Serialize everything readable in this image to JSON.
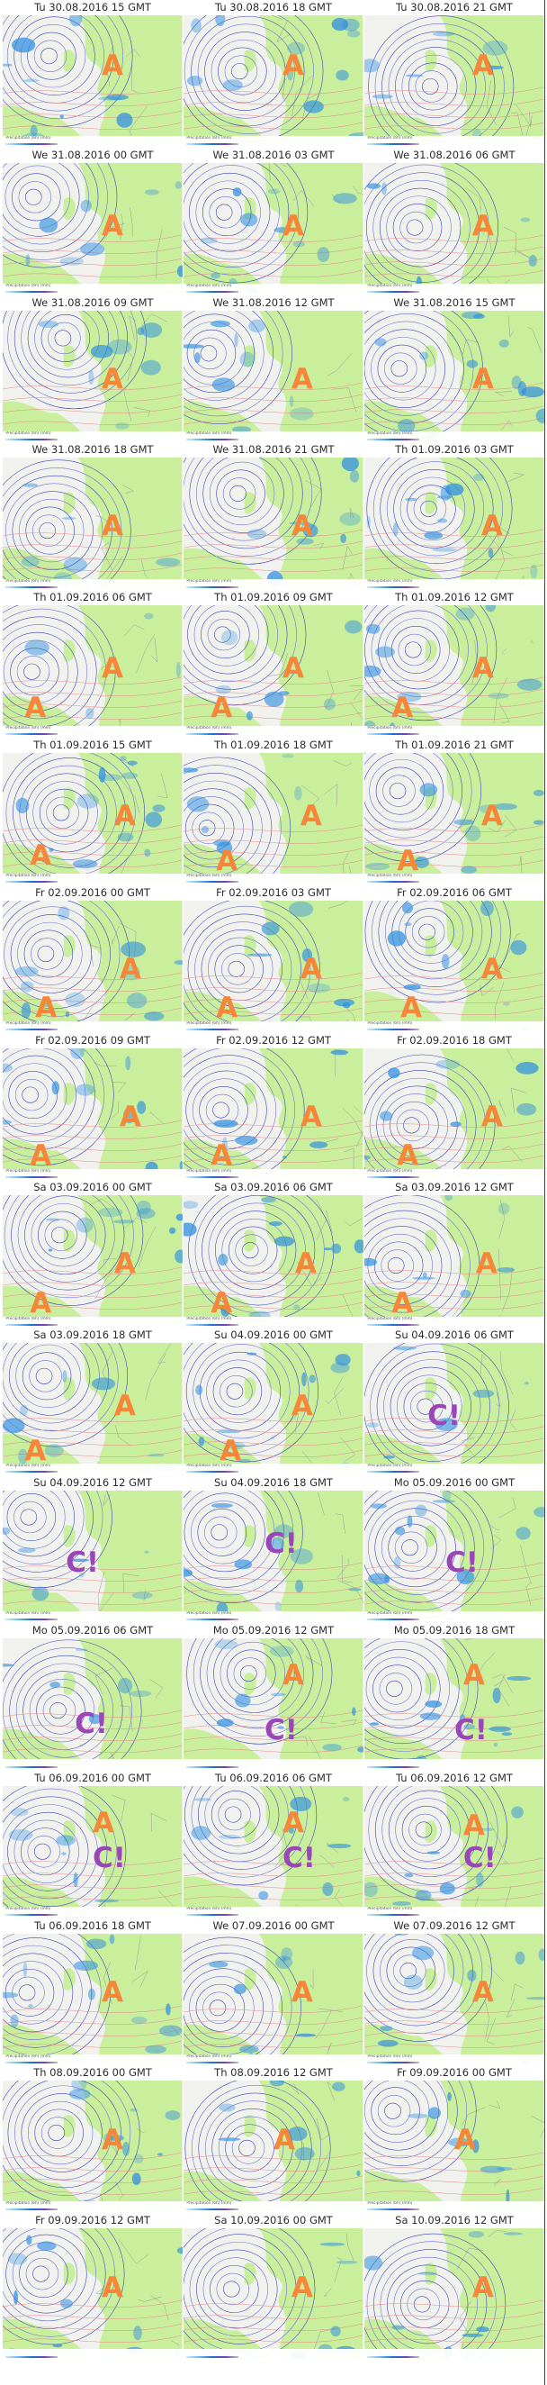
{
  "colors": {
    "high_marker": "#f6873a",
    "low_marker": "#9b46b8",
    "land": "#c9ef9c",
    "sea": "#f1f2ee",
    "precipitation": "#2f8fe0",
    "isobar": "#3b47b8"
  },
  "panels": [
    {
      "title": "Tu 30.08.2016   15 GMT",
      "footer": "Precipitation (6h) (mm)",
      "markers": [
        {
          "label": "A",
          "type": "high"
        }
      ]
    },
    {
      "title": "Tu 30.08.2016   18 GMT",
      "footer": "Precipitation (6h) (mm)",
      "markers": [
        {
          "label": "A",
          "type": "high"
        }
      ]
    },
    {
      "title": "Tu 30.08.2016   21 GMT",
      "footer": "Precipitation (6h) (mm)",
      "markers": [
        {
          "label": "A",
          "type": "high"
        }
      ]
    },
    {
      "title": "We 31.08.2016   00 GMT",
      "footer": "Precipitation (6h) (mm)",
      "markers": [
        {
          "label": "A",
          "type": "high"
        }
      ]
    },
    {
      "title": "We 31.08.2016   03 GMT",
      "footer": "Precipitation (6h) (mm)",
      "markers": [
        {
          "label": "A",
          "type": "high"
        }
      ]
    },
    {
      "title": "We 31.08.2016   06 GMT",
      "footer": "Precipitation (6h) (mm)",
      "markers": [
        {
          "label": "A",
          "type": "high"
        }
      ]
    },
    {
      "title": "We 31.08.2016   09 GMT",
      "footer": "Precipitation (6h) (mm)",
      "markers": [
        {
          "label": "A",
          "type": "high"
        }
      ]
    },
    {
      "title": "We 31.08.2016   12 GMT",
      "footer": "Precipitation (6h) (mm)",
      "markers": [
        {
          "label": "A",
          "type": "high"
        }
      ]
    },
    {
      "title": "We 31.08.2016   15 GMT",
      "footer": "Precipitation (6h) (mm)",
      "markers": [
        {
          "label": "A",
          "type": "high"
        }
      ]
    },
    {
      "title": "We 31.08.2016   18 GMT",
      "footer": "Precipitation (6h) (mm)",
      "markers": [
        {
          "label": "A",
          "type": "high"
        }
      ]
    },
    {
      "title": "We 31.08.2016   21 GMT",
      "footer": "Precipitation (6h) (mm)",
      "markers": [
        {
          "label": "A",
          "type": "high"
        }
      ]
    },
    {
      "title": "Th 01.09.2016   03 GMT",
      "footer": "Precipitation (6h) (mm)",
      "markers": [
        {
          "label": "A",
          "type": "high"
        }
      ]
    },
    {
      "title": "Th 01.09.2016   06 GMT",
      "footer": "Precipitation (6h) (mm)",
      "markers": [
        {
          "label": "A",
          "type": "high"
        },
        {
          "label": "A",
          "type": "high"
        }
      ]
    },
    {
      "title": "Th 01.09.2016   09 GMT",
      "footer": "Precipitation (6h) (mm)",
      "markers": [
        {
          "label": "A",
          "type": "high"
        },
        {
          "label": "A",
          "type": "high"
        }
      ]
    },
    {
      "title": "Th 01.09.2016   12 GMT",
      "footer": "Precipitation (6h) (mm)",
      "markers": [
        {
          "label": "A",
          "type": "high"
        },
        {
          "label": "A",
          "type": "high"
        }
      ]
    },
    {
      "title": "Th 01.09.2016   15 GMT",
      "footer": "Precipitation (6h) (mm)",
      "markers": [
        {
          "label": "A",
          "type": "high"
        },
        {
          "label": "A",
          "type": "high"
        }
      ]
    },
    {
      "title": "Th 01.09.2016   18 GMT",
      "footer": "Precipitation (6h) (mm)",
      "markers": [
        {
          "label": "A",
          "type": "high"
        },
        {
          "label": "A",
          "type": "high"
        }
      ]
    },
    {
      "title": "Th 01.09.2016   21 GMT",
      "footer": "Precipitation (6h) (mm)",
      "markers": [
        {
          "label": "A",
          "type": "high"
        },
        {
          "label": "A",
          "type": "high"
        }
      ]
    },
    {
      "title": "Fr 02.09.2016   00 GMT",
      "footer": "Precipitation (6h) (mm)",
      "markers": [
        {
          "label": "A",
          "type": "high"
        },
        {
          "label": "A",
          "type": "high"
        }
      ]
    },
    {
      "title": "Fr 02.09.2016   03 GMT",
      "footer": "Precipitation (6h) (mm)",
      "markers": [
        {
          "label": "A",
          "type": "high"
        },
        {
          "label": "A",
          "type": "high"
        }
      ]
    },
    {
      "title": "Fr 02.09.2016   06 GMT",
      "footer": "Precipitation (6h) (mm)",
      "markers": [
        {
          "label": "A",
          "type": "high"
        },
        {
          "label": "A",
          "type": "high"
        }
      ]
    },
    {
      "title": "Fr 02.09.2016   09 GMT",
      "footer": "Precipitation (6h) (mm)",
      "markers": [
        {
          "label": "A",
          "type": "high"
        },
        {
          "label": "A",
          "type": "high"
        }
      ]
    },
    {
      "title": "Fr 02.09.2016   12 GMT",
      "footer": "Precipitation (6h) (mm)",
      "markers": [
        {
          "label": "A",
          "type": "high"
        },
        {
          "label": "A",
          "type": "high"
        }
      ]
    },
    {
      "title": "Fr 02.09.2016   18 GMT",
      "footer": "Precipitation (6h) (mm)",
      "markers": [
        {
          "label": "A",
          "type": "high"
        },
        {
          "label": "A",
          "type": "high"
        }
      ]
    },
    {
      "title": "Sa 03.09.2016   00 GMT",
      "footer": "Precipitation (6h) (mm)",
      "markers": [
        {
          "label": "A",
          "type": "high"
        },
        {
          "label": "A",
          "type": "high"
        }
      ]
    },
    {
      "title": "Sa 03.09.2016   06 GMT",
      "footer": "Precipitation (6h) (mm)",
      "markers": [
        {
          "label": "A",
          "type": "high"
        },
        {
          "label": "A",
          "type": "high"
        }
      ]
    },
    {
      "title": "Sa 03.09.2016   12 GMT",
      "footer": "Precipitation (6h) (mm)",
      "markers": [
        {
          "label": "A",
          "type": "high"
        },
        {
          "label": "A",
          "type": "high"
        }
      ]
    },
    {
      "title": "Sa 03.09.2016   18 GMT",
      "footer": "Precipitation (6h) (mm)",
      "markers": [
        {
          "label": "A",
          "type": "high"
        },
        {
          "label": "A",
          "type": "high"
        }
      ]
    },
    {
      "title": "Su 04.09.2016   00 GMT",
      "footer": "Precipitation (6h) (mm)",
      "markers": [
        {
          "label": "A",
          "type": "high"
        },
        {
          "label": "A",
          "type": "high"
        }
      ]
    },
    {
      "title": "Su 04.09.2016   06 GMT",
      "footer": "Precipitation (6h) (mm)",
      "markers": [
        {
          "label": "C!",
          "type": "low"
        }
      ]
    },
    {
      "title": "Su 04.09.2016   12 GMT",
      "footer": "Precipitation (6h) (mm)",
      "markers": [
        {
          "label": "C!",
          "type": "low"
        }
      ]
    },
    {
      "title": "Su 04.09.2016   18 GMT",
      "footer": "Precipitation (6h) (mm)",
      "markers": [
        {
          "label": "C!",
          "type": "low"
        }
      ]
    },
    {
      "title": "Mo 05.09.2016   00 GMT",
      "footer": "Precipitation (6h) (mm)",
      "markers": [
        {
          "label": "C!",
          "type": "low"
        }
      ]
    },
    {
      "title": "Mo 05.09.2016   06 GMT",
      "footer": "",
      "markers": [
        {
          "label": "C!",
          "type": "low"
        }
      ]
    },
    {
      "title": "Mo 05.09.2016   12 GMT",
      "footer": "",
      "markers": [
        {
          "label": "A",
          "type": "high"
        },
        {
          "label": "C!",
          "type": "low"
        }
      ]
    },
    {
      "title": "Mo 05.09.2016   18 GMT",
      "footer": "",
      "markers": [
        {
          "label": "A",
          "type": "high"
        },
        {
          "label": "C!",
          "type": "low"
        }
      ]
    },
    {
      "title": "Tu 06.09.2016   00 GMT",
      "footer": "Precipitation (6h) (mm)",
      "markers": [
        {
          "label": "A",
          "type": "high"
        },
        {
          "label": "C!",
          "type": "low"
        }
      ]
    },
    {
      "title": "Tu 06.09.2016   06 GMT",
      "footer": "Precipitation (6h) (mm)",
      "markers": [
        {
          "label": "A",
          "type": "high"
        },
        {
          "label": "C!",
          "type": "low"
        }
      ]
    },
    {
      "title": "Tu 06.09.2016   12 GMT",
      "footer": "Precipitation (6h) (mm)",
      "markers": [
        {
          "label": "A",
          "type": "high"
        },
        {
          "label": "C!",
          "type": "low"
        }
      ]
    },
    {
      "title": "Tu 06.09.2016   18 GMT",
      "footer": "Precipitation (6h) (mm)",
      "markers": [
        {
          "label": "A",
          "type": "high"
        }
      ]
    },
    {
      "title": "We 07.09.2016   00 GMT",
      "footer": "Precipitation (6h) (mm)",
      "markers": [
        {
          "label": "A",
          "type": "high"
        }
      ]
    },
    {
      "title": "We 07.09.2016   12 GMT",
      "footer": "Precipitation (6h) (mm)",
      "markers": [
        {
          "label": "A",
          "type": "high"
        }
      ]
    },
    {
      "title": "Th 08.09.2016   00 GMT",
      "footer": "Precipitation (6h) (mm)",
      "markers": [
        {
          "label": "A",
          "type": "high"
        }
      ]
    },
    {
      "title": "Th 08.09.2016   12 GMT",
      "footer": "Precipitation (6h) (mm)",
      "markers": [
        {
          "label": "A",
          "type": "high"
        }
      ]
    },
    {
      "title": "Fr 09.09.2016   00 GMT",
      "footer": "Precipitation (6h) (mm)",
      "markers": [
        {
          "label": "A",
          "type": "high"
        }
      ]
    },
    {
      "title": "Fr 09.09.2016   12 GMT",
      "footer": "",
      "markers": [
        {
          "label": "A",
          "type": "high"
        }
      ]
    },
    {
      "title": "Sa 10.09.2016   00 GMT",
      "footer": "",
      "markers": [
        {
          "label": "A",
          "type": "high"
        }
      ]
    },
    {
      "title": "Sa 10.09.2016   12 GMT",
      "footer": "",
      "markers": [
        {
          "label": "A",
          "type": "high"
        }
      ]
    }
  ]
}
